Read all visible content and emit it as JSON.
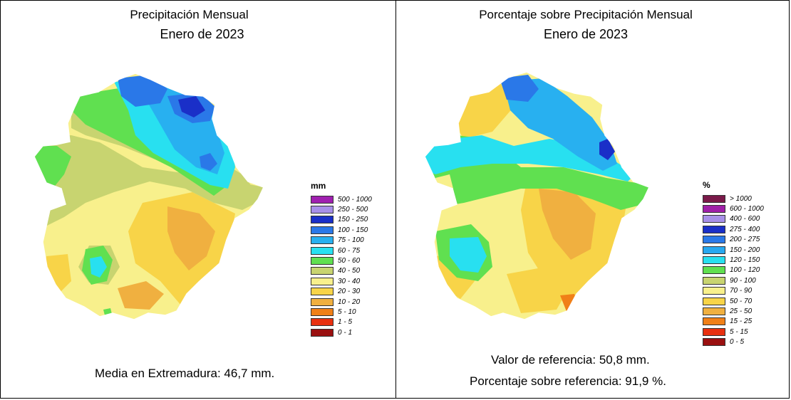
{
  "left_panel": {
    "title": "Precipitación Mensual",
    "subtitle": "Enero de 2023",
    "legend_unit": "mm",
    "legend": [
      {
        "label": "500 - 1000",
        "color": "#a020b0"
      },
      {
        "label": "250 - 500",
        "color": "#a890e8"
      },
      {
        "label": "150 - 250",
        "color": "#1a2fc8"
      },
      {
        "label": "100 - 150",
        "color": "#2a78e8"
      },
      {
        "label": "75 - 100",
        "color": "#28b0f0"
      },
      {
        "label": "60 - 75",
        "color": "#28e0f0"
      },
      {
        "label": "50 - 60",
        "color": "#60e050"
      },
      {
        "label": "40 - 50",
        "color": "#c8d470"
      },
      {
        "label": "30 - 40",
        "color": "#f8f08c"
      },
      {
        "label": "20 - 30",
        "color": "#f8d448"
      },
      {
        "label": "10 - 20",
        "color": "#f0b040"
      },
      {
        "label": "5 - 10",
        "color": "#f08018"
      },
      {
        "label": "1 - 5",
        "color": "#e83010"
      },
      {
        "label": "0 - 1",
        "color": "#9a1010"
      }
    ],
    "stat": "Media en Extremadura: 46,7 mm."
  },
  "right_panel": {
    "title": "Porcentaje sobre Precipitación Mensual",
    "subtitle": "Enero de 2023",
    "legend_unit": "%",
    "legend": [
      {
        "label": "> 1000",
        "color": "#7a1a4a"
      },
      {
        "label": "600 - 1000",
        "color": "#a020a8"
      },
      {
        "label": "400 - 600",
        "color": "#a890e8"
      },
      {
        "label": "275 - 400",
        "color": "#1a2fc8"
      },
      {
        "label": "200 - 275",
        "color": "#2a78e8"
      },
      {
        "label": "150 - 200",
        "color": "#28a8f0"
      },
      {
        "label": "120 - 150",
        "color": "#28e0f0"
      },
      {
        "label": "100 - 120",
        "color": "#60e050"
      },
      {
        "label": "90 - 100",
        "color": "#c8d470"
      },
      {
        "label": "70 - 90",
        "color": "#f8f08c"
      },
      {
        "label": "50 - 70",
        "color": "#f8d448"
      },
      {
        "label": "25 - 50",
        "color": "#f0b040"
      },
      {
        "label": "15 - 25",
        "color": "#f08018"
      },
      {
        "label": "5 - 15",
        "color": "#e83010"
      },
      {
        "label": "0 - 5",
        "color": "#9a1010"
      }
    ],
    "stat1": "Valor de referencia: 50,8 mm.",
    "stat2": "Porcentaje sobre referencia: 91,9 %."
  }
}
